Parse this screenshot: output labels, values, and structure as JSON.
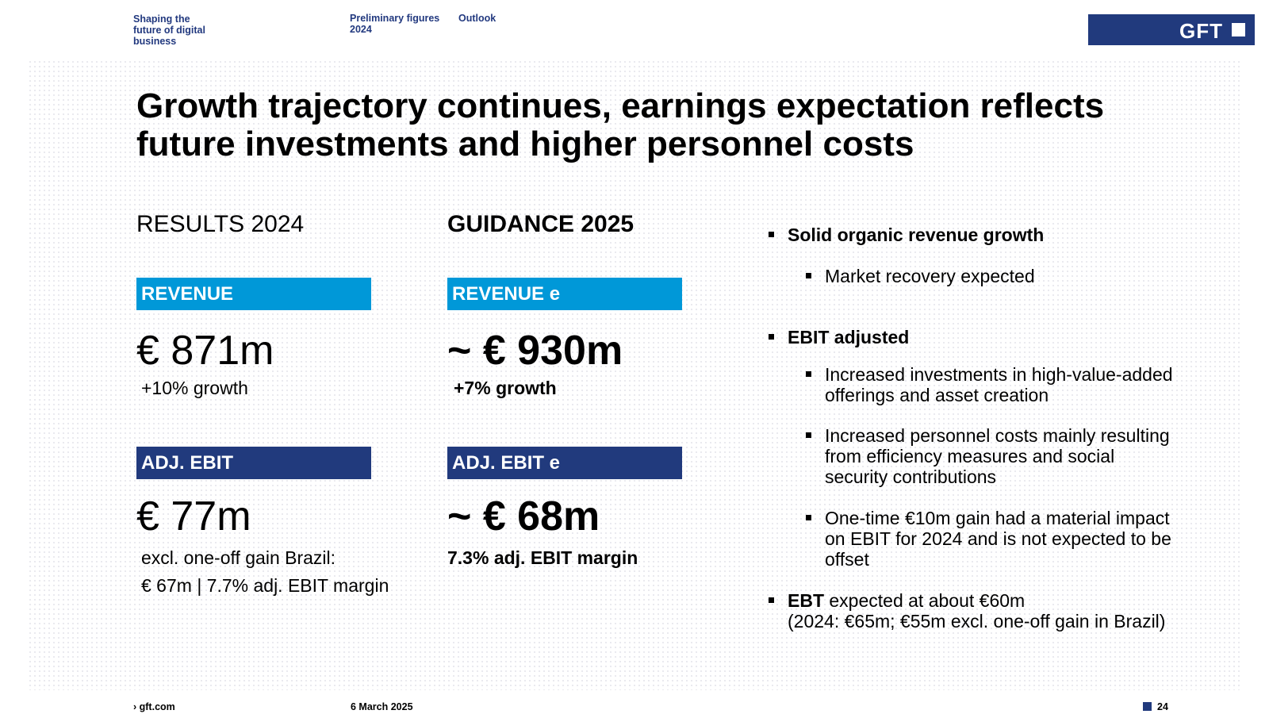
{
  "header": {
    "tagline": "Shaping the future of digital business",
    "tagline_lines": [
      "Shaping the",
      "future of digital",
      "business"
    ],
    "nav": [
      {
        "label_lines": [
          "Preliminary figures",
          "2024"
        ]
      },
      {
        "label_lines": [
          "Outlook"
        ]
      }
    ],
    "logo": {
      "text": "GFT",
      "color": "#213a7d"
    }
  },
  "title": {
    "line1": "Growth trajectory continues, earnings expectation reflects",
    "line2": "future investments and higher personnel costs"
  },
  "results": {
    "heading": "RESULTS 2024",
    "revenue_label": "REVENUE",
    "revenue_value": "€ 871m",
    "revenue_growth": "+10% growth",
    "ebit_label": "ADJ. EBIT",
    "ebit_value": "€ 77m",
    "ebit_note1": "excl. one-off gain Brazil:",
    "ebit_note2": "€ 67m | 7.7% adj. EBIT margin"
  },
  "guidance": {
    "heading": "GUIDANCE 2025",
    "revenue_label": "REVENUE e",
    "revenue_value": "~ € 930m",
    "revenue_growth": "+7% growth",
    "ebit_label": "ADJ. EBIT e",
    "ebit_value": "~ € 68m",
    "ebit_margin": "7.3% adj. EBIT margin"
  },
  "bullets": {
    "b1": "Solid organic revenue growth",
    "b1_sub": "Market recovery expected",
    "b2": "EBIT adjusted",
    "b2_sub1_lines": [
      "Increased investments in high-value-added",
      "offerings and asset creation"
    ],
    "b2_sub2_lines": [
      "Increased personnel costs mainly resulting",
      "from efficiency measures and social",
      "security contributions"
    ],
    "b2_sub3_lines": [
      "One-time €10m gain had a material impact",
      "on EBIT for 2024 and is not expected to be",
      "offset"
    ],
    "b3_bold": "EBT",
    "b3_rest": " expected at about €60m",
    "b3_line2": "(2024: €65m; €55m excl. one-off gain in Brazil)"
  },
  "footer": {
    "link": "› gft.com",
    "date": "6 March 2025",
    "page": "24"
  },
  "colors": {
    "navy": "#213a7d",
    "cyan": "#0098d8"
  }
}
